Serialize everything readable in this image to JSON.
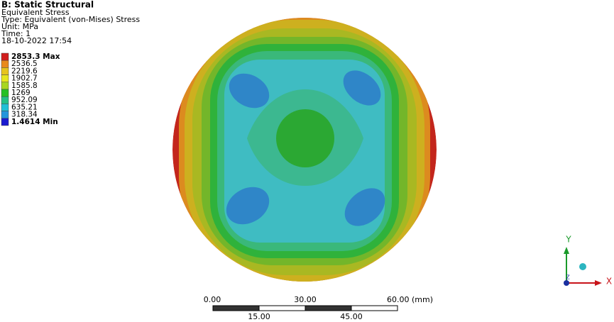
{
  "header": {
    "title": "B: Static Structural",
    "lines": [
      "Equivalent Stress",
      "Type: Equivalent (von-Mises) Stress",
      "Unit: MPa",
      "Time: 1",
      "18-10-2022 17:54"
    ]
  },
  "legend": {
    "labels": [
      "2853.3 Max",
      "2536.5",
      "2219.6",
      "1902.7",
      "1585.8",
      "1269",
      "952.09",
      "635.21",
      "318.34",
      "1.4614 Min"
    ]
  },
  "scale_bar": {
    "top_labels": [
      "0.00",
      "30.00",
      "60.00 (mm)"
    ],
    "bottom_labels": [
      "15.00",
      "45.00"
    ]
  },
  "triad": {
    "y": "Y",
    "x": "X",
    "z": "Z"
  }
}
